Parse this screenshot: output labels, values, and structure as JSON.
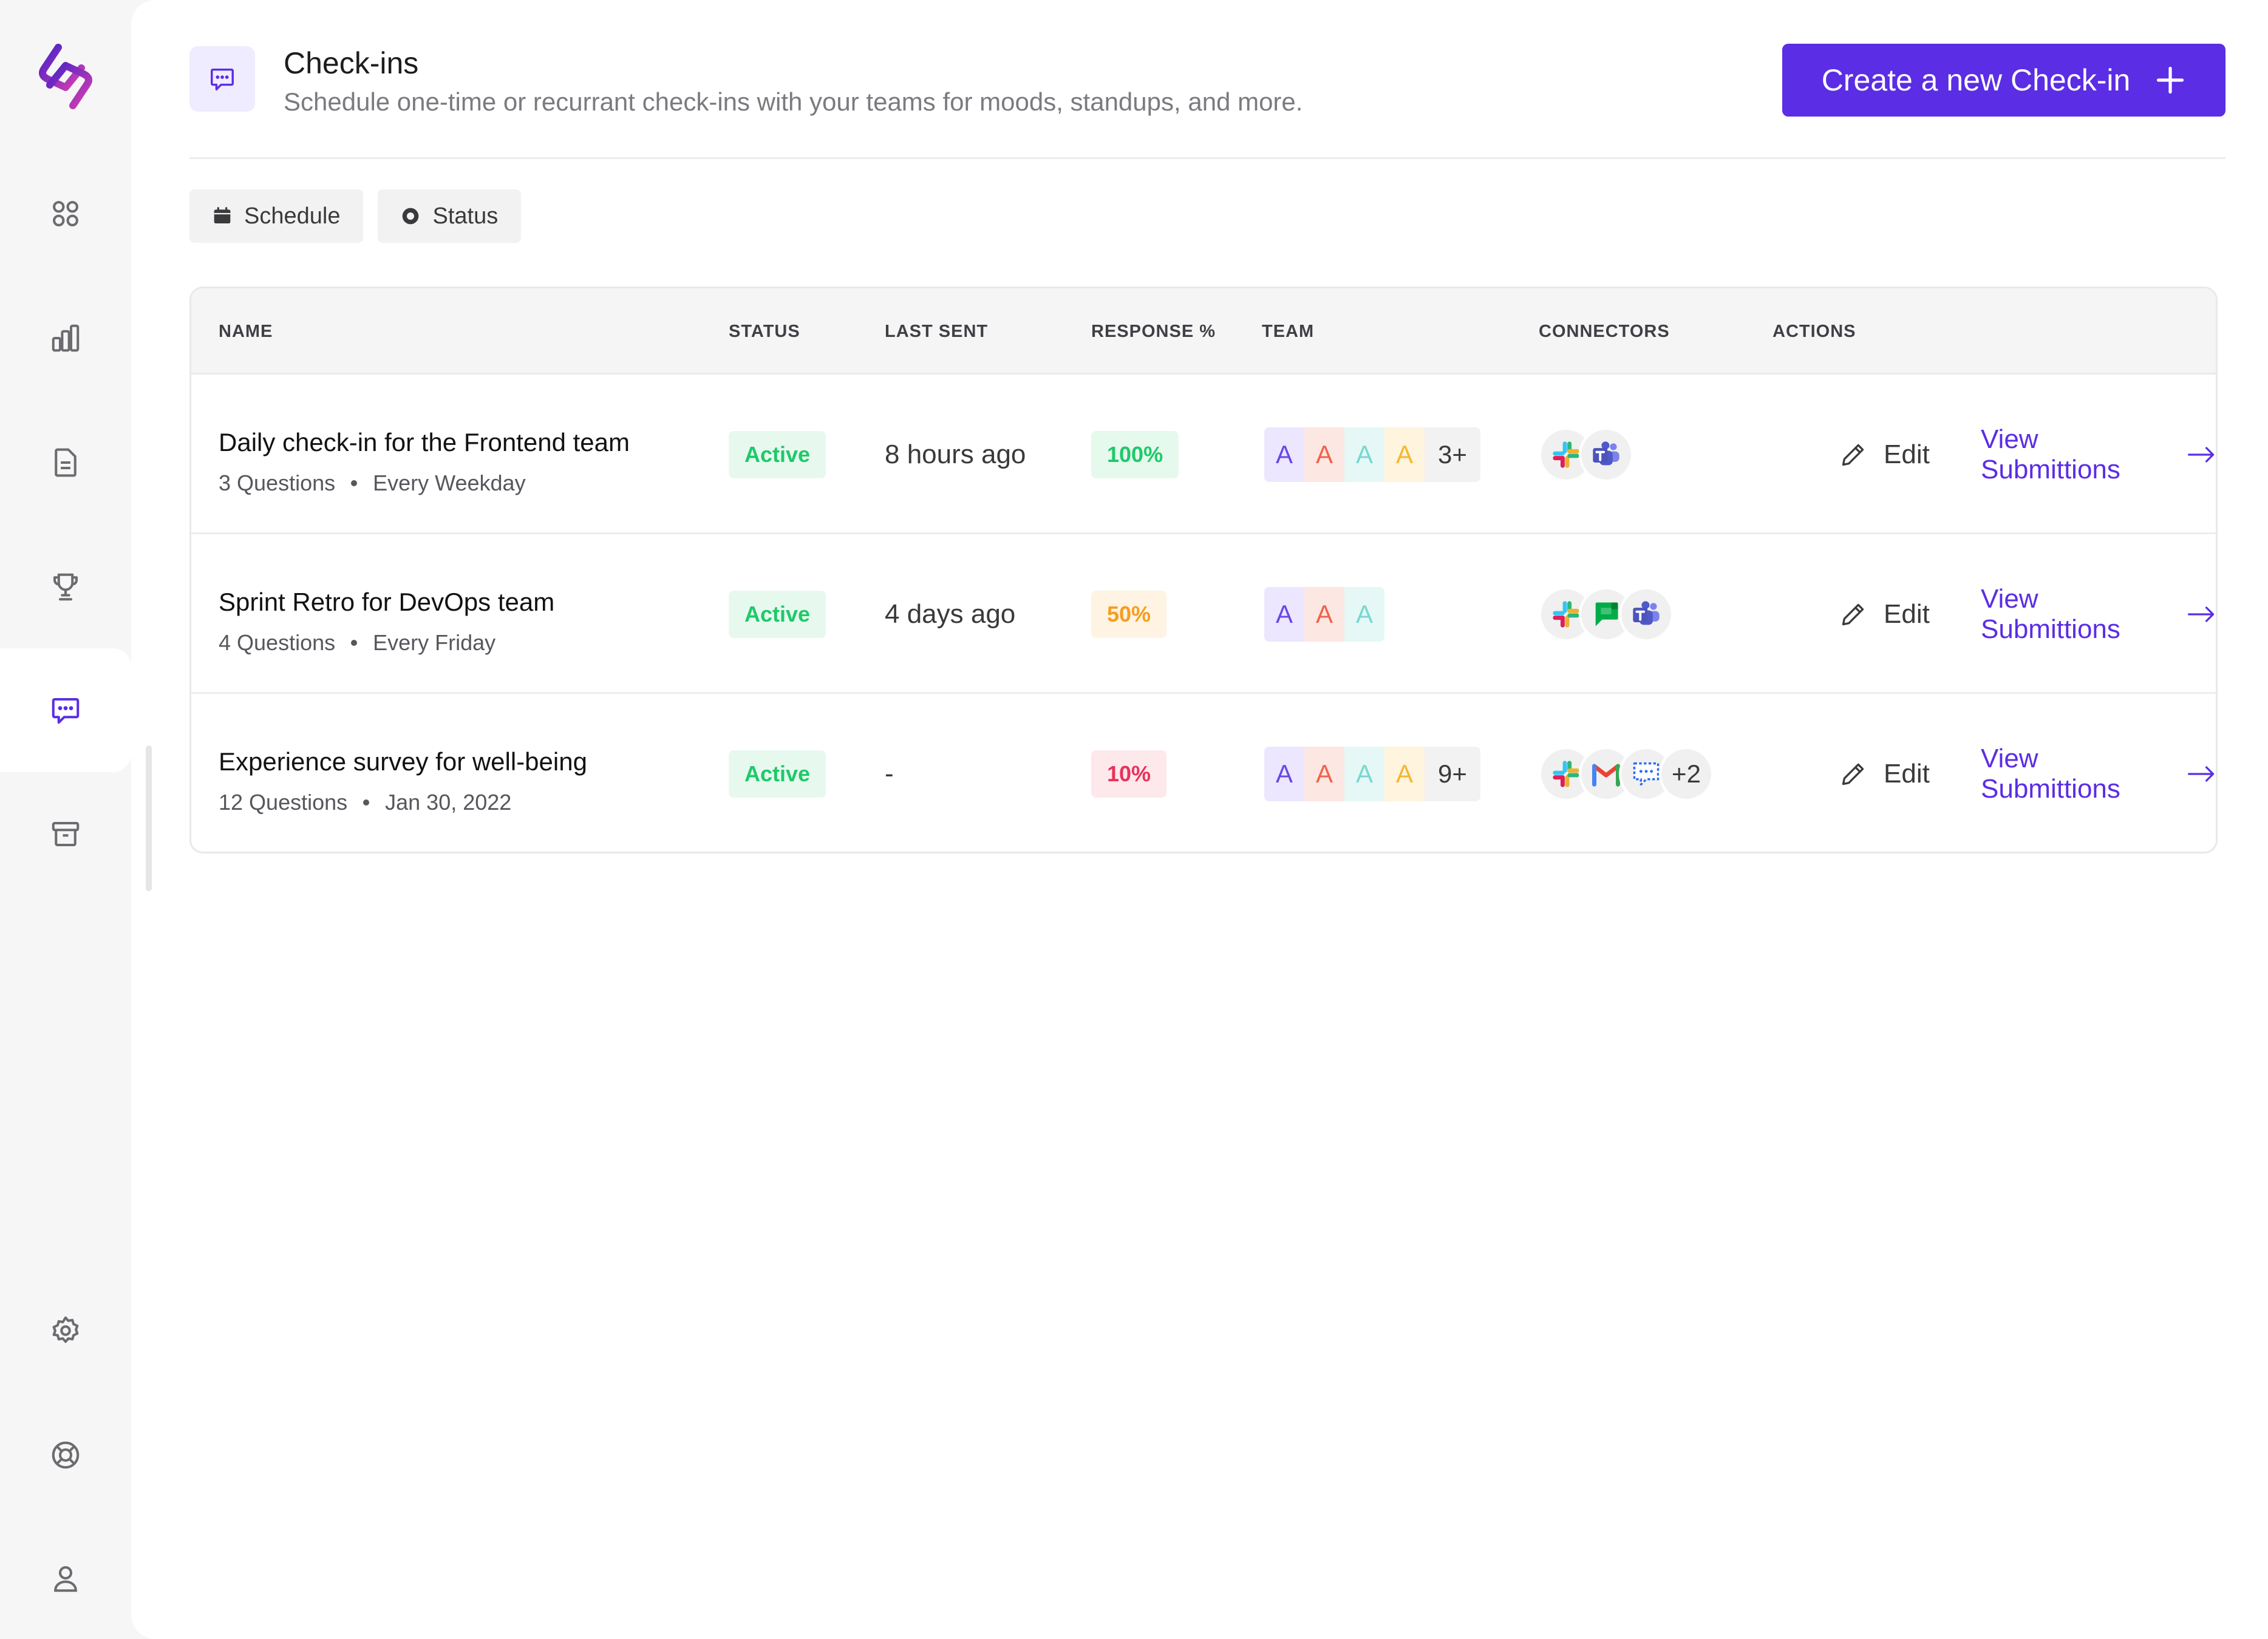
{
  "header": {
    "title": "Check-ins",
    "subtitle": "Schedule one-time or recurrant check-ins with your teams for moods, standups, and more.",
    "create_label": "Create a new Check-in"
  },
  "filters": {
    "schedule_label": "Schedule",
    "status_label": "Status"
  },
  "table": {
    "columns": {
      "name": "NAME",
      "status": "STATUS",
      "last_sent": "LAST SENT",
      "response": "RESPONSE %",
      "team": "TEAM",
      "connectors": "CONNECTORS",
      "actions": "ACTIONS"
    },
    "rows": [
      {
        "title": "Daily check-in for the Frontend team",
        "questions": "3 Questions",
        "schedule": "Every Weekday",
        "status": "Active",
        "last_sent": "8 hours ago",
        "response": "100%",
        "response_level": "high",
        "team": [
          "A",
          "A",
          "A",
          "A"
        ],
        "team_more": "3+",
        "connectors": [
          "slack-icon",
          "teams-icon"
        ],
        "connectors_more": "",
        "edit_label": "Edit",
        "view_label": "View Submittions"
      },
      {
        "title": "Sprint Retro for DevOps team",
        "questions": "4 Questions",
        "schedule": "Every Friday",
        "status": "Active",
        "last_sent": "4 days ago",
        "response": "50%",
        "response_level": "medium",
        "team": [
          "A",
          "A",
          "A"
        ],
        "team_more": "",
        "connectors": [
          "slack-icon",
          "google-chat-icon",
          "teams-icon"
        ],
        "connectors_more": "",
        "edit_label": "Edit",
        "view_label": "View Submittions"
      },
      {
        "title": "Experience survey for well-being",
        "questions": "12 Questions",
        "schedule": "Jan 30, 2022",
        "status": "Active",
        "last_sent": "-",
        "response": "10%",
        "response_level": "low",
        "team": [
          "A",
          "A",
          "A",
          "A"
        ],
        "team_more": "9+",
        "connectors": [
          "slack-icon",
          "gmail-icon",
          "chat-bubble-icon"
        ],
        "connectors_more": "+2",
        "edit_label": "Edit",
        "view_label": "View Submittions"
      }
    ]
  },
  "sidebar": {
    "items": [
      "dashboard-icon",
      "analytics-icon",
      "document-icon",
      "trophy-icon",
      "check-ins-icon",
      "archive-icon",
      "settings-icon",
      "support-icon",
      "profile-icon"
    ],
    "active": "check-ins-icon"
  },
  "colors": {
    "brand": "#5b2de4",
    "success": "#1ec96a",
    "warning": "#f59e1f",
    "danger": "#e8325a"
  }
}
